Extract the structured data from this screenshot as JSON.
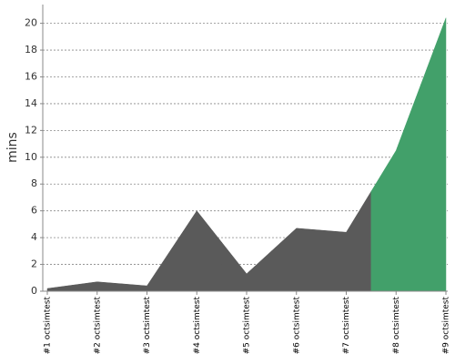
{
  "chart_data": {
    "type": "area",
    "y_label": "mins",
    "categories": [
      "#1 octsimtest",
      "#2 octsimtest",
      "#3 octsimtest",
      "#4 octsimtest",
      "#5 octsimtest",
      "#6 octsimtest",
      "#7 octsimtest",
      "#8 octsimtest",
      "#9 octsimtest"
    ],
    "values": [
      0.2,
      0.7,
      0.4,
      6.0,
      1.3,
      4.7,
      4.4,
      10.5,
      20.4
    ],
    "point_colors": [
      "#5a5a5a",
      "#5a5a5a",
      "#5a5a5a",
      "#5a5a5a",
      "#5a5a5a",
      "#5a5a5a",
      "#5a5a5a",
      "#42a06a",
      "#42a06a"
    ],
    "ylim": [
      0,
      21.4
    ],
    "yticks": [
      0,
      2,
      4,
      6,
      8,
      10,
      12,
      14,
      16,
      18,
      20
    ],
    "grid": true
  }
}
